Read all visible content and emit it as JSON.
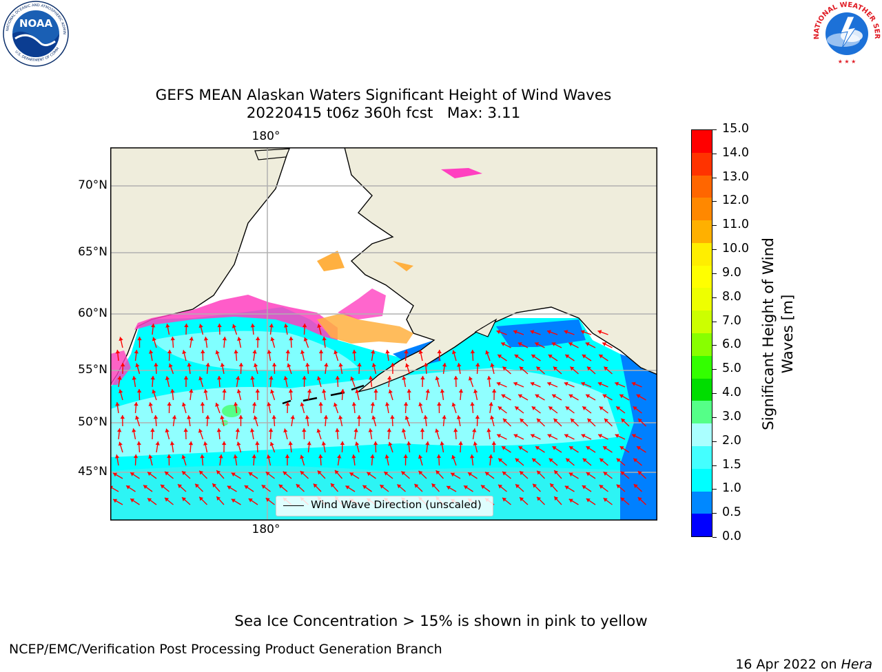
{
  "logos": {
    "left": {
      "name": "NOAA",
      "ring_text": "NATIONAL OCEANIC AND ATMOSPHERIC ADMINISTRATION · U.S. DEPARTMENT OF COMMERCE",
      "colors": {
        "blue": "#1a5fb4",
        "dark": "#0b2f6b",
        "white": "#ffffff"
      }
    },
    "right": {
      "name": "NATIONAL WEATHER SERVICE",
      "colors": {
        "red": "#e01b24",
        "blue": "#1c71d8",
        "light": "#99c1f1"
      }
    }
  },
  "title": {
    "line1": "GEFS MEAN Alaskan Waters Significant Height of Wind Waves",
    "line2": "20220415 t06z 360h fcst   Max: 3.11"
  },
  "map": {
    "lon_label_top": "180°",
    "lon_label_bottom": "180°",
    "lat_labels": [
      "70°N",
      "65°N",
      "60°N",
      "55°N",
      "50°N",
      "45°N"
    ],
    "legend_label": "Wind Wave Direction (unscaled)",
    "colors": {
      "land": "#efeddc",
      "ocean_main": "#00ffff",
      "ocean_light": "#a0ffff",
      "ocean_mid": "#40f0f0",
      "ocean_deep": "#0080ff",
      "arrow": "#ff0000",
      "ice_pink": "#ff40c0",
      "ice_orange": "#ffb040",
      "grid": "#b0b0b0"
    }
  },
  "colorbar": {
    "label_line1": "Significant Height of Wind",
    "label_line2": "Waves [m]",
    "ticks": [
      "15.0",
      "14.0",
      "13.0",
      "12.0",
      "11.0",
      "10.0",
      "9.0",
      "8.0",
      "7.0",
      "6.0",
      "5.0",
      "4.0",
      "3.0",
      "2.0",
      "1.5",
      "1.0",
      "0.5",
      "0.0"
    ],
    "colors_top_to_bottom": [
      "#ff0000",
      "#ff3300",
      "#ff6600",
      "#ff8800",
      "#ffb000",
      "#ffee00",
      "#ffff00",
      "#eeff00",
      "#ccff00",
      "#88ff00",
      "#33ff00",
      "#00dd00",
      "#55ff88",
      "#aaffff",
      "#44ffff",
      "#00ffff",
      "#0088ff",
      "#0000ff"
    ]
  },
  "footer": {
    "sea_ice_note": "Sea Ice Concentration > 15% is shown in pink to yellow",
    "branch": "NCEP/EMC/Verification Post Processing Product Generation Branch",
    "date": "16 Apr 2022 on ",
    "host": "Hera"
  }
}
